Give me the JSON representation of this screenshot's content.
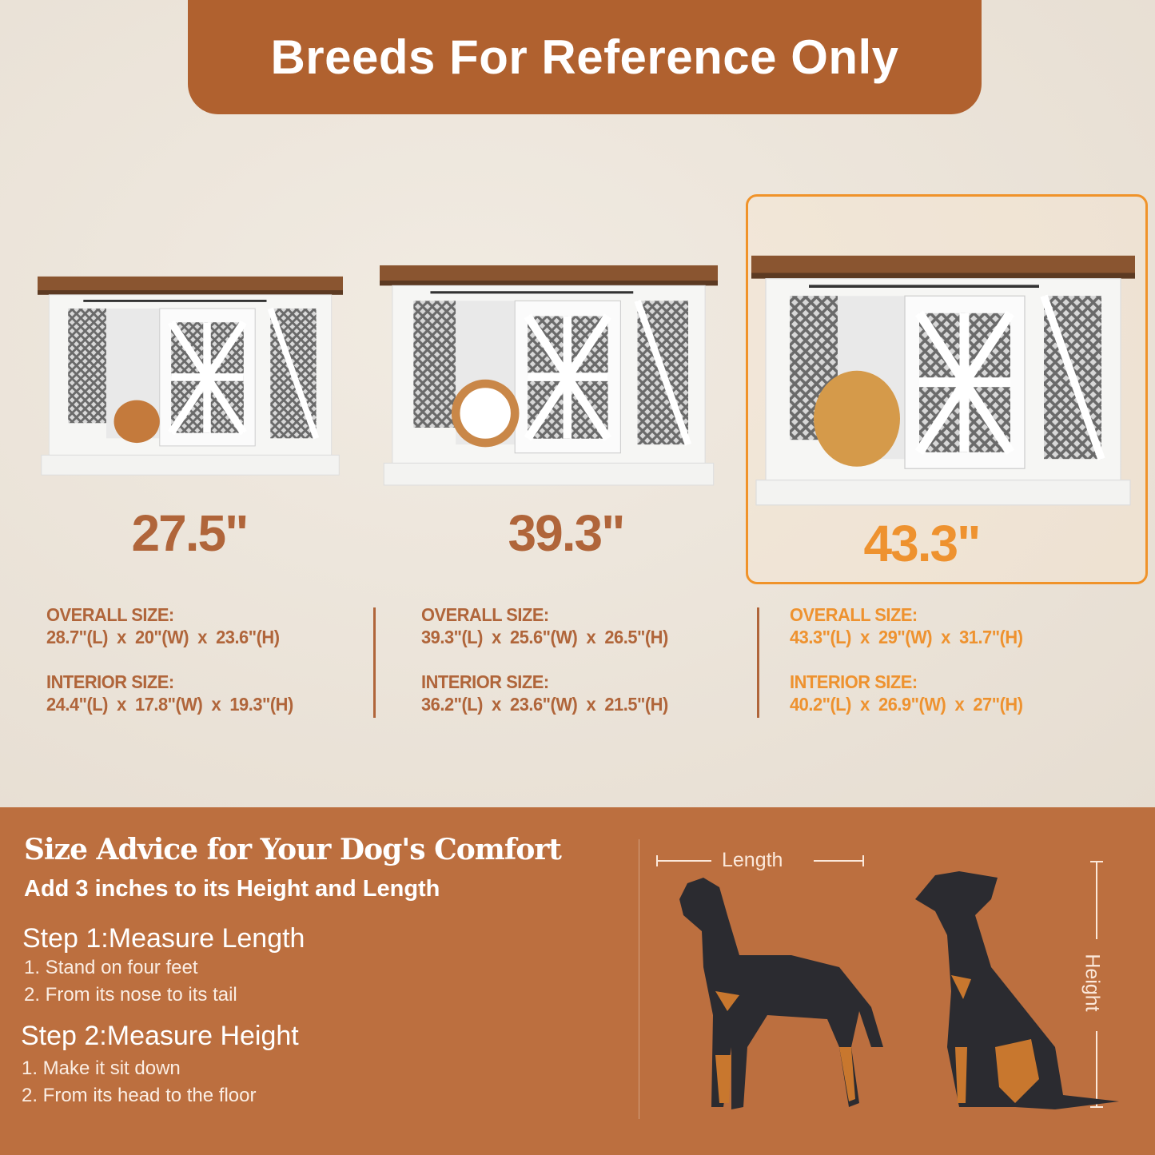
{
  "banner": {
    "title": "Breeds For Reference Only"
  },
  "products": [
    {
      "size_label": "27.5\"",
      "overall_label": "OVERALL SIZE:",
      "overall": "28.7\"(L)  x  20\"(W)  x  23.6\"(H)",
      "interior_label": "INTERIOR SIZE:",
      "interior": "24.4\"(L)  x  17.8\"(W)  x  19.3\"(H)",
      "highlighted": false
    },
    {
      "size_label": "39.3\"",
      "overall_label": "OVERALL SIZE:",
      "overall": "39.3\"(L)  x  25.6\"(W)  x  26.5\"(H)",
      "interior_label": "INTERIOR SIZE:",
      "interior": "36.2\"(L)  x  23.6\"(W)  x  21.5\"(H)",
      "highlighted": false
    },
    {
      "size_label": "43.3\"",
      "overall_label": "OVERALL SIZE:",
      "overall": "43.3\"(L)  x  29\"(W)  x  31.7\"(H)",
      "interior_label": "INTERIOR SIZE:",
      "interior": "40.2\"(L)  x  26.9\"(W)  x  27\"(H)",
      "highlighted": true
    }
  ],
  "advice": {
    "title": "Size Advice for Your Dog's Comfort",
    "subtitle": "Add 3 inches to its Height and Length",
    "step1": {
      "title": "Step 1:Measure Length",
      "items": [
        "1. Stand on four feet",
        "2. From its nose to its tail"
      ]
    },
    "step2": {
      "title": "Step 2:Measure Height",
      "items": [
        "1. Make it sit down",
        "2. From its head to the floor"
      ]
    },
    "length_label": "Length",
    "height_label": "Height"
  },
  "colors": {
    "brand": "#b0612f",
    "highlight": "#ee922f",
    "panel": "#bc6f3f"
  }
}
